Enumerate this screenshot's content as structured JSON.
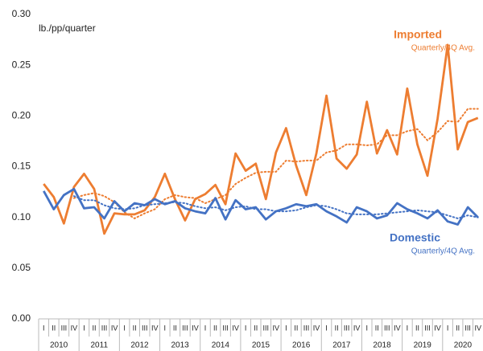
{
  "chart_data": {
    "type": "line",
    "y_label": "lb./pp/quarter",
    "categories": [
      "I",
      "II",
      "III",
      "IV",
      "I",
      "II",
      "III",
      "IV",
      "I",
      "II",
      "III",
      "IV",
      "I",
      "II",
      "III",
      "IV",
      "I",
      "II",
      "III",
      "IV",
      "I",
      "II",
      "III",
      "IV",
      "I",
      "II",
      "III",
      "IV",
      "I",
      "II",
      "III",
      "IV",
      "I",
      "II",
      "III",
      "IV",
      "I",
      "II",
      "III",
      "IV",
      "I",
      "II",
      "III",
      "IV"
    ],
    "years": [
      "2010",
      "2011",
      "2012",
      "2013",
      "2014",
      "2015",
      "2016",
      "2017",
      "2018",
      "2019",
      "2020"
    ],
    "ylim": [
      0,
      0.3
    ],
    "yticks": [
      {
        "value": 0,
        "label": "0.00"
      },
      {
        "value": 0.05,
        "label": "0.05"
      },
      {
        "value": 0.1,
        "label": "0.10"
      },
      {
        "value": 0.15,
        "label": "0.15"
      },
      {
        "value": 0.2,
        "label": "0.20"
      },
      {
        "value": 0.25,
        "label": "0.25"
      },
      {
        "value": 0.3,
        "label": "0.30"
      }
    ],
    "grid": false,
    "series": [
      {
        "name": "Imported",
        "sublabel": "Quarterly/4Q Avg.",
        "color": "#ed7d31",
        "values": [
          0.133,
          0.12,
          0.094,
          0.13,
          0.143,
          0.128,
          0.084,
          0.104,
          0.103,
          0.103,
          0.107,
          0.12,
          0.143,
          0.118,
          0.097,
          0.118,
          0.123,
          0.132,
          0.113,
          0.163,
          0.146,
          0.153,
          0.118,
          0.164,
          0.188,
          0.151,
          0.122,
          0.163,
          0.22,
          0.158,
          0.148,
          0.162,
          0.214,
          0.163,
          0.186,
          0.162,
          0.227,
          0.172,
          0.141,
          0.197,
          0.27,
          0.167,
          0.194,
          0.198
        ],
        "avg_values": [
          null,
          null,
          null,
          0.119,
          0.122,
          0.124,
          0.121,
          0.115,
          0.105,
          0.099,
          0.104,
          0.108,
          0.118,
          0.122,
          0.12,
          0.119,
          0.114,
          0.118,
          0.122,
          0.133,
          0.139,
          0.144,
          0.145,
          0.145,
          0.156,
          0.155,
          0.156,
          0.156,
          0.164,
          0.166,
          0.172,
          0.172,
          0.171,
          0.172,
          0.181,
          0.181,
          0.185,
          0.187,
          0.176,
          0.184,
          0.195,
          0.194,
          0.207,
          0.207
        ]
      },
      {
        "name": "Domestic",
        "sublabel": "Quarterly/4Q Avg.",
        "color": "#4472c4",
        "values": [
          0.126,
          0.108,
          0.122,
          0.128,
          0.109,
          0.11,
          0.099,
          0.116,
          0.106,
          0.114,
          0.112,
          0.118,
          0.113,
          0.116,
          0.109,
          0.106,
          0.104,
          0.119,
          0.098,
          0.117,
          0.108,
          0.11,
          0.098,
          0.106,
          0.109,
          0.113,
          0.111,
          0.113,
          0.106,
          0.101,
          0.095,
          0.11,
          0.106,
          0.099,
          0.102,
          0.114,
          0.108,
          0.104,
          0.099,
          0.107,
          0.096,
          0.093,
          0.11,
          0.1
        ],
        "avg_values": [
          null,
          null,
          null,
          0.121,
          0.117,
          0.117,
          0.112,
          0.109,
          0.108,
          0.109,
          0.112,
          0.113,
          0.114,
          0.115,
          0.114,
          0.111,
          0.109,
          0.11,
          0.107,
          0.11,
          0.111,
          0.108,
          0.108,
          0.106,
          0.106,
          0.107,
          0.11,
          0.112,
          0.111,
          0.108,
          0.104,
          0.103,
          0.103,
          0.103,
          0.104,
          0.105,
          0.106,
          0.107,
          0.106,
          0.105,
          0.102,
          0.099,
          0.102,
          0.1
        ]
      }
    ]
  }
}
